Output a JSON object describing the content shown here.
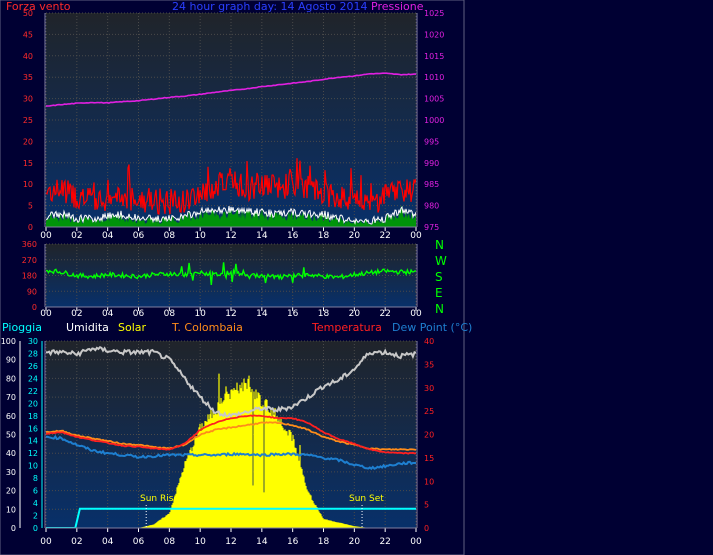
{
  "colors": {
    "frame_bg": "#000033",
    "plot_top": "#20242a",
    "plot_bottom": "#08306a",
    "grid": "#4a4a4a",
    "hour_tick": "#ffffff",
    "wind_axis": "#ff2a2a",
    "pressure": "#e020e0",
    "wind_gust": "#ff0000",
    "wind_avg": "#ffffff",
    "wind_green": "#00a000",
    "direction": "#00ff00",
    "rain": "#00ffff",
    "humidity": "#c8c8c8",
    "solar": "#ffff00",
    "temp_colombaia": "#ff8c1a",
    "temperature": "#ff2020",
    "dew_point": "#1e7fd0",
    "title": "#2a3fff"
  },
  "top_panel": {
    "left_label": "Forza vento",
    "title": "24 hour graph day: 14 Agosto 2014",
    "right_label": "Pressione"
  },
  "direction_panel": {
    "compass": [
      "N",
      "W",
      "S",
      "E",
      "N"
    ]
  },
  "bottom_panel": {
    "legend": {
      "rain": "Pioggia",
      "humidity": "Umidita",
      "solar": "Solar",
      "colombaia": "T. Colombaia",
      "temperature": "Temperatura",
      "dew_point": "Dew Point (°C)"
    },
    "sun_rise": "Sun Rise",
    "sun_set": "Sun Set"
  },
  "chart_data": [
    {
      "type": "line",
      "name": "wind-pressure",
      "x_ticks": [
        "00",
        "02",
        "04",
        "06",
        "08",
        "10",
        "12",
        "14",
        "16",
        "18",
        "20",
        "22",
        "00"
      ],
      "y_left_ticks": [
        "0",
        "5",
        "10",
        "15",
        "20",
        "25",
        "30",
        "35",
        "40",
        "45",
        "50"
      ],
      "y_left_range": [
        0,
        50
      ],
      "y_right_ticks": [
        "975",
        "980",
        "985",
        "990",
        "995",
        "1000",
        "1005",
        "1010",
        "1015",
        "1020",
        "1025"
      ],
      "y_right_range": [
        975,
        1025
      ],
      "grid": true,
      "series": [
        {
          "key": "pressure",
          "axis": "right",
          "x": [
            0,
            1,
            2,
            3,
            4,
            5,
            6,
            7,
            8,
            9,
            10,
            11,
            12,
            13,
            14,
            15,
            16,
            17,
            18,
            19,
            20,
            21,
            22,
            23,
            24
          ],
          "values": [
            1003.2,
            1003.6,
            1003.9,
            1004.1,
            1004.0,
            1004.3,
            1004.5,
            1004.9,
            1005.3,
            1005.6,
            1006.0,
            1006.5,
            1006.9,
            1007.3,
            1007.8,
            1008.2,
            1008.6,
            1009.0,
            1009.5,
            1010.0,
            1010.3,
            1010.8,
            1010.9,
            1010.6,
            1010.7
          ]
        },
        {
          "key": "wind_gust",
          "axis": "left",
          "x": [
            0,
            1,
            2,
            3,
            4,
            5,
            6,
            7,
            8,
            9,
            10,
            11,
            12,
            13,
            14,
            15,
            16,
            17,
            18,
            19,
            20,
            21,
            22,
            23,
            24
          ],
          "values": [
            8,
            9,
            7,
            6,
            6,
            7,
            6,
            6,
            6,
            6,
            8,
            9,
            11,
            9,
            10,
            9,
            10,
            9,
            8,
            7,
            6,
            5,
            7,
            9,
            8
          ]
        },
        {
          "key": "wind_avg",
          "axis": "left",
          "x": [
            0,
            1,
            2,
            3,
            4,
            5,
            6,
            7,
            8,
            9,
            10,
            11,
            12,
            13,
            14,
            15,
            16,
            17,
            18,
            19,
            20,
            21,
            22,
            23,
            24
          ],
          "values": [
            2.5,
            3,
            2,
            2,
            2.5,
            3,
            2,
            2,
            2,
            2.5,
            3.5,
            4,
            4,
            3.5,
            3.5,
            3,
            3.5,
            3,
            3,
            2,
            1.5,
            1.5,
            2,
            4,
            3
          ]
        }
      ]
    },
    {
      "type": "line",
      "name": "wind-direction",
      "x_ticks": [
        "00",
        "02",
        "04",
        "06",
        "08",
        "10",
        "12",
        "14",
        "16",
        "18",
        "20",
        "22",
        "00"
      ],
      "y_ticks": [
        "0",
        "90",
        "180",
        "270",
        "360"
      ],
      "y_range": [
        0,
        360
      ],
      "grid": true,
      "series": [
        {
          "key": "direction",
          "x": [
            0,
            1,
            2,
            3,
            4,
            5,
            6,
            7,
            8,
            9,
            10,
            11,
            12,
            13,
            14,
            15,
            16,
            17,
            18,
            19,
            20,
            21,
            22,
            23,
            24
          ],
          "values": [
            210,
            200,
            180,
            175,
            185,
            180,
            175,
            185,
            190,
            185,
            195,
            185,
            200,
            185,
            180,
            170,
            175,
            185,
            175,
            170,
            185,
            195,
            205,
            200,
            200
          ]
        }
      ]
    },
    {
      "type": "area",
      "name": "temperature-humidity-solar",
      "x_ticks": [
        "00",
        "02",
        "04",
        "06",
        "08",
        "10",
        "12",
        "14",
        "16",
        "18",
        "20",
        "22",
        "00"
      ],
      "y_humidity_ticks": [
        "0",
        "10",
        "20",
        "30",
        "40",
        "50",
        "60",
        "70",
        "80",
        "90",
        "100"
      ],
      "y_humidity_range": [
        0,
        100
      ],
      "y_rain_ticks": [
        "0",
        "2",
        "4",
        "6",
        "8",
        "10",
        "12",
        "14",
        "16",
        "18",
        "20",
        "22",
        "24",
        "26",
        "28",
        "30"
      ],
      "y_rain_range": [
        0,
        30
      ],
      "y_temp_ticks": [
        "0",
        "5",
        "10",
        "15",
        "20",
        "25",
        "30",
        "35",
        "40"
      ],
      "y_temp_range": [
        0,
        40
      ],
      "grid": true,
      "sun_rise_hour": 6.5,
      "sun_set_hour": 20.5,
      "series": [
        {
          "key": "humidity",
          "axis": "humidity",
          "x": [
            0,
            1,
            2,
            3,
            4,
            5,
            6,
            7,
            8,
            9,
            10,
            11,
            12,
            13,
            14,
            15,
            16,
            17,
            18,
            19,
            20,
            21,
            22,
            23,
            24
          ],
          "values": [
            94,
            94,
            93,
            96,
            95,
            94,
            94,
            94,
            90,
            80,
            70,
            62,
            60,
            62,
            64,
            63,
            65,
            70,
            76,
            79,
            85,
            94,
            94,
            92,
            93
          ]
        },
        {
          "key": "solar",
          "axis": "humidity",
          "x": [
            0,
            1,
            2,
            3,
            4,
            5,
            6,
            7,
            8,
            9,
            10,
            11,
            12,
            13,
            14,
            15,
            16,
            17,
            18,
            19,
            20,
            21,
            22,
            23,
            24
          ],
          "values": [
            0,
            0,
            0,
            0,
            0,
            0,
            0,
            2,
            8,
            35,
            55,
            65,
            75,
            80,
            70,
            62,
            50,
            20,
            5,
            3,
            1,
            0,
            0,
            0,
            0
          ]
        },
        {
          "key": "temperature",
          "axis": "temp",
          "x": [
            0,
            1,
            2,
            3,
            4,
            5,
            6,
            7,
            8,
            9,
            10,
            11,
            12,
            13,
            14,
            15,
            16,
            17,
            18,
            19,
            20,
            21,
            22,
            23,
            24
          ],
          "values": [
            20.2,
            20.5,
            19.5,
            18.8,
            18.2,
            17.6,
            17.4,
            17.0,
            16.8,
            18.0,
            21.0,
            22.5,
            23.5,
            24.0,
            24.0,
            23.5,
            23.5,
            22.5,
            20.5,
            19.0,
            18.0,
            16.8,
            16.2,
            16.0,
            16.0
          ]
        },
        {
          "key": "temp_colombaia",
          "axis": "temp",
          "x": [
            0,
            1,
            2,
            3,
            4,
            5,
            6,
            7,
            8,
            9,
            10,
            11,
            12,
            13,
            14,
            15,
            16,
            17,
            18,
            19,
            20,
            21,
            22,
            23,
            24
          ],
          "values": [
            20.5,
            20.8,
            19.8,
            19.2,
            18.6,
            18.0,
            17.8,
            17.3,
            17.0,
            17.8,
            20.0,
            21.0,
            21.5,
            22.0,
            22.5,
            22.5,
            22.0,
            21.0,
            19.5,
            18.5,
            17.8,
            17.0,
            16.8,
            16.8,
            16.8
          ]
        },
        {
          "key": "dew_point",
          "axis": "temp",
          "x": [
            0,
            1,
            2,
            3,
            4,
            5,
            6,
            7,
            8,
            9,
            10,
            11,
            12,
            13,
            14,
            15,
            16,
            17,
            18,
            19,
            20,
            21,
            22,
            23,
            24
          ],
          "values": [
            19.5,
            19.2,
            17.8,
            16.6,
            16.0,
            15.6,
            15.2,
            15.4,
            15.6,
            15.6,
            15.6,
            15.6,
            15.8,
            15.8,
            15.6,
            15.8,
            15.8,
            15.6,
            15.0,
            14.5,
            13.5,
            12.8,
            13.2,
            13.8,
            14.0
          ]
        },
        {
          "key": "rain",
          "axis": "rain",
          "x": [
            0,
            1.9,
            2.2,
            24
          ],
          "values": [
            0,
            0,
            3.1,
            3.1
          ]
        }
      ]
    }
  ]
}
